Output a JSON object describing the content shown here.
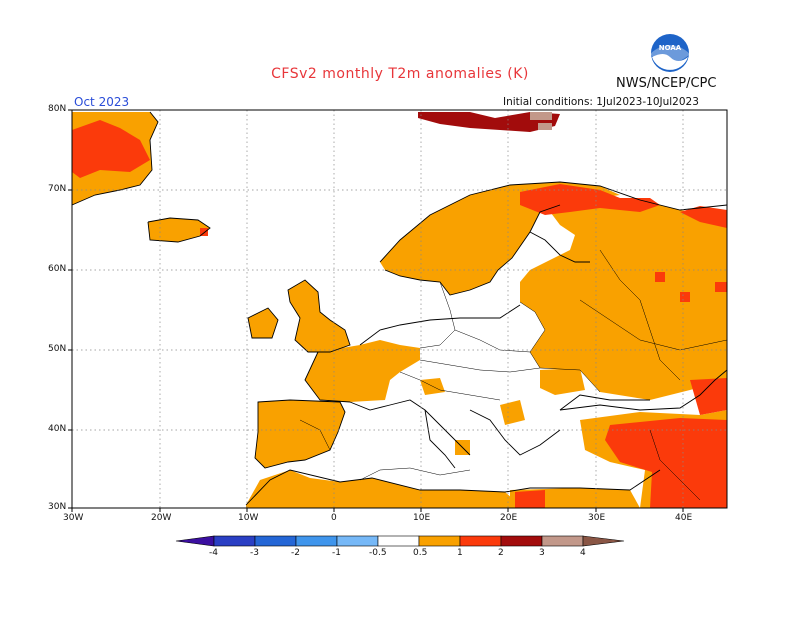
{
  "header": {
    "title": "CFSv2 monthly T2m anomalies (K)",
    "agency": "NWS/NCEP/CPC",
    "month": "Oct 2023",
    "initial_conditions": "Initial conditions: 1Jul2023-10Jul2023",
    "logo_text": "NOAA"
  },
  "axes": {
    "lat_labels": [
      "80N",
      "70N",
      "60N",
      "50N",
      "40N",
      "30N"
    ],
    "lon_labels": [
      "30W",
      "20W",
      "10W",
      "0",
      "10E",
      "20E",
      "30E",
      "40E"
    ]
  },
  "colorbar": {
    "labels": [
      "-4",
      "-3",
      "-2",
      "-1",
      "-0.5",
      "0.5",
      "1",
      "2",
      "3",
      "4"
    ],
    "colors": [
      "#3b0fa0",
      "#2a3fc4",
      "#2466d6",
      "#3f95ec",
      "#76b8f7",
      "#ffffff",
      "#f9a100",
      "#fb3a0b",
      "#a20c0c",
      "#c2988a",
      "#8a5645"
    ]
  },
  "legend_meaning": {
    "white": "-0.5 to 0.5",
    "orange": "0.5 to 1",
    "red": "1 to 2",
    "dark_red": "2 to 3",
    "pink": "3 to 4"
  },
  "colors": {
    "orange": "#f9a100",
    "red": "#fb3a0b",
    "dark_red": "#a20c0c",
    "pink": "#c2988a",
    "title": "#e8363a",
    "month": "#2a4dd8"
  }
}
